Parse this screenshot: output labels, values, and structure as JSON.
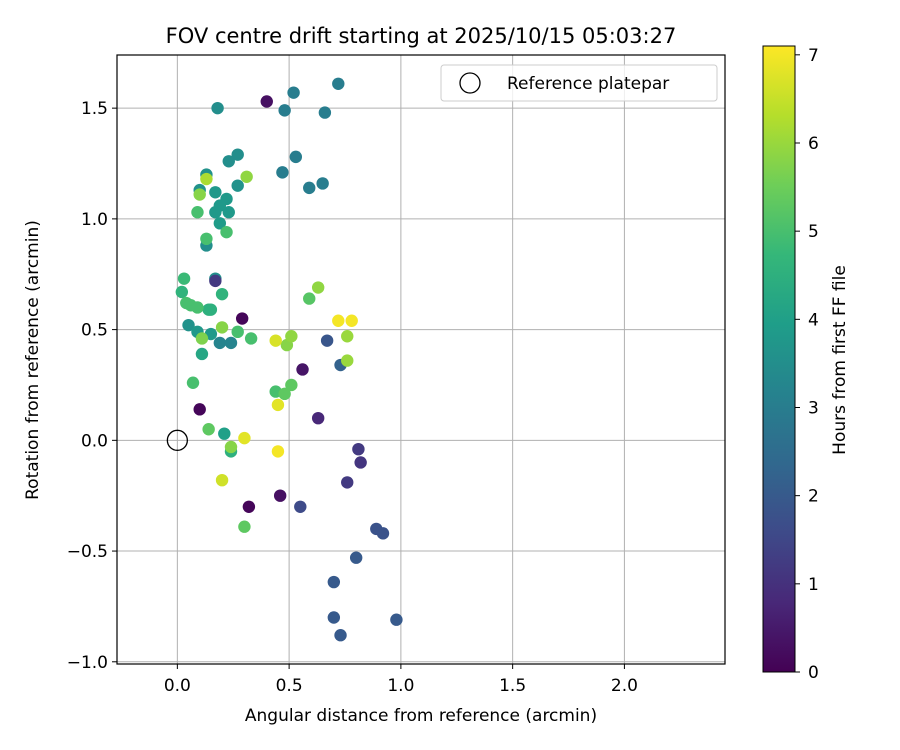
{
  "chart_data": {
    "type": "scatter",
    "title": "FOV centre drift starting at 2025/10/15 05:03:27",
    "xlabel": "Angular distance from reference (arcmin)",
    "ylabel": "Rotation from reference (arcmin)",
    "xlim": [
      -0.27,
      2.45
    ],
    "ylim": [
      -1.01,
      1.74
    ],
    "xticks": [
      0.0,
      0.5,
      1.0,
      1.5,
      2.0
    ],
    "xtick_labels": [
      "0.0",
      "0.5",
      "1.0",
      "1.5",
      "2.0"
    ],
    "yticks": [
      -1.0,
      -0.5,
      0.0,
      0.5,
      1.0,
      1.5
    ],
    "ytick_labels": [
      "−1.0",
      "−0.5",
      "0.0",
      "0.5",
      "1.0",
      "1.5"
    ],
    "grid": true,
    "legend": {
      "location": "top-right",
      "entries": [
        {
          "label": "Reference platepar",
          "marker": "open-circle"
        }
      ]
    },
    "reference_point": {
      "x": 0.0,
      "y": 0.0
    },
    "colorbar": {
      "label": "Hours from first FF file",
      "colormap": "viridis",
      "range": [
        0,
        7.1
      ],
      "ticks": [
        0,
        1,
        2,
        3,
        4,
        5,
        6,
        7
      ],
      "tick_labels": [
        "0",
        "1",
        "2",
        "3",
        "4",
        "5",
        "6",
        "7"
      ]
    },
    "colormap_stops": [
      "#440154",
      "#482878",
      "#3e4a89",
      "#31688e",
      "#26828e",
      "#1f9e89",
      "#35b779",
      "#6ece58",
      "#b5de2b",
      "#fde725"
    ],
    "points": [
      {
        "x": 0.1,
        "y": 0.14,
        "c": 0.1
      },
      {
        "x": 0.29,
        "y": 0.55,
        "c": 0.1
      },
      {
        "x": 0.32,
        "y": -0.3,
        "c": 0.1
      },
      {
        "x": 0.4,
        "y": 1.53,
        "c": 0.3
      },
      {
        "x": 0.46,
        "y": -0.25,
        "c": 0.3
      },
      {
        "x": 0.56,
        "y": 0.32,
        "c": 0.4
      },
      {
        "x": 0.63,
        "y": 0.1,
        "c": 0.8
      },
      {
        "x": 0.55,
        "y": -0.3,
        "c": 1.6
      },
      {
        "x": 0.76,
        "y": -0.19,
        "c": 1.2
      },
      {
        "x": 0.81,
        "y": -0.04,
        "c": 1.2
      },
      {
        "x": 0.82,
        "y": -0.1,
        "c": 1.1
      },
      {
        "x": 0.89,
        "y": -0.4,
        "c": 1.8
      },
      {
        "x": 0.92,
        "y": -0.42,
        "c": 1.8
      },
      {
        "x": 0.8,
        "y": -0.53,
        "c": 2.0
      },
      {
        "x": 0.7,
        "y": -0.64,
        "c": 2.0
      },
      {
        "x": 0.7,
        "y": -0.8,
        "c": 2.0
      },
      {
        "x": 0.73,
        "y": -0.88,
        "c": 2.0
      },
      {
        "x": 0.98,
        "y": -0.81,
        "c": 2.0
      },
      {
        "x": 0.67,
        "y": 0.45,
        "c": 1.9
      },
      {
        "x": 0.73,
        "y": 0.34,
        "c": 2.2
      },
      {
        "x": 0.72,
        "y": 1.61,
        "c": 3.0
      },
      {
        "x": 0.52,
        "y": 1.57,
        "c": 3.0
      },
      {
        "x": 0.48,
        "y": 1.49,
        "c": 3.0
      },
      {
        "x": 0.66,
        "y": 1.48,
        "c": 3.0
      },
      {
        "x": 0.53,
        "y": 1.28,
        "c": 3.0
      },
      {
        "x": 0.47,
        "y": 1.21,
        "c": 3.0
      },
      {
        "x": 0.59,
        "y": 1.14,
        "c": 3.0
      },
      {
        "x": 0.65,
        "y": 1.16,
        "c": 3.0
      },
      {
        "x": 0.18,
        "y": 1.5,
        "c": 3.5
      },
      {
        "x": 0.27,
        "y": 1.29,
        "c": 3.5
      },
      {
        "x": 0.23,
        "y": 1.26,
        "c": 3.5
      },
      {
        "x": 0.13,
        "y": 1.2,
        "c": 3.6
      },
      {
        "x": 0.1,
        "y": 1.13,
        "c": 3.6
      },
      {
        "x": 0.17,
        "y": 1.12,
        "c": 3.8
      },
      {
        "x": 0.22,
        "y": 1.09,
        "c": 3.8
      },
      {
        "x": 0.19,
        "y": 1.06,
        "c": 3.8
      },
      {
        "x": 0.17,
        "y": 1.03,
        "c": 3.8
      },
      {
        "x": 0.23,
        "y": 1.03,
        "c": 3.8
      },
      {
        "x": 0.19,
        "y": 0.98,
        "c": 3.9
      },
      {
        "x": 0.13,
        "y": 0.88,
        "c": 3.5
      },
      {
        "x": 0.27,
        "y": 1.15,
        "c": 3.6
      },
      {
        "x": 0.17,
        "y": 0.73,
        "c": 3.5
      },
      {
        "x": 0.17,
        "y": 0.72,
        "c": 1.2
      },
      {
        "x": 0.2,
        "y": 0.66,
        "c": 4.6
      },
      {
        "x": 0.14,
        "y": 0.59,
        "c": 4.5
      },
      {
        "x": 0.15,
        "y": 0.59,
        "c": 4.5
      },
      {
        "x": 0.05,
        "y": 0.52,
        "c": 3.6
      },
      {
        "x": 0.09,
        "y": 0.49,
        "c": 3.8
      },
      {
        "x": 0.15,
        "y": 0.48,
        "c": 3.8
      },
      {
        "x": 0.19,
        "y": 0.44,
        "c": 3.2
      },
      {
        "x": 0.24,
        "y": 0.44,
        "c": 3.2
      },
      {
        "x": 0.11,
        "y": 0.39,
        "c": 4.2
      },
      {
        "x": 0.21,
        "y": 0.03,
        "c": 4.0
      },
      {
        "x": 0.24,
        "y": -0.05,
        "c": 4.5
      },
      {
        "x": 0.02,
        "y": 0.67,
        "c": 4.6
      },
      {
        "x": 0.03,
        "y": 0.73,
        "c": 4.8
      },
      {
        "x": 0.04,
        "y": 0.62,
        "c": 5.0
      },
      {
        "x": 0.06,
        "y": 0.61,
        "c": 5.0
      },
      {
        "x": 0.09,
        "y": 0.6,
        "c": 5.0
      },
      {
        "x": 0.09,
        "y": 1.03,
        "c": 5.0
      },
      {
        "x": 0.22,
        "y": 0.94,
        "c": 5.0
      },
      {
        "x": 0.13,
        "y": 0.91,
        "c": 5.0
      },
      {
        "x": 0.27,
        "y": 0.49,
        "c": 5.0
      },
      {
        "x": 0.33,
        "y": 0.46,
        "c": 5.0
      },
      {
        "x": 0.07,
        "y": 0.26,
        "c": 5.0
      },
      {
        "x": 0.14,
        "y": 0.05,
        "c": 5.3
      },
      {
        "x": 0.3,
        "y": -0.39,
        "c": 5.3
      },
      {
        "x": 0.44,
        "y": 0.22,
        "c": 5.0
      },
      {
        "x": 0.48,
        "y": 0.21,
        "c": 5.3
      },
      {
        "x": 0.51,
        "y": 0.25,
        "c": 5.3
      },
      {
        "x": 0.59,
        "y": 0.64,
        "c": 5.2
      },
      {
        "x": 0.24,
        "y": -0.03,
        "c": 5.8
      },
      {
        "x": 0.2,
        "y": 0.51,
        "c": 5.8
      },
      {
        "x": 0.1,
        "y": 1.11,
        "c": 5.8
      },
      {
        "x": 0.31,
        "y": 1.19,
        "c": 5.9
      },
      {
        "x": 0.13,
        "y": 1.18,
        "c": 6.2
      },
      {
        "x": 0.11,
        "y": 0.46,
        "c": 5.7
      },
      {
        "x": 0.49,
        "y": 0.43,
        "c": 5.8
      },
      {
        "x": 0.51,
        "y": 0.47,
        "c": 5.9
      },
      {
        "x": 0.63,
        "y": 0.69,
        "c": 5.9
      },
      {
        "x": 0.76,
        "y": 0.47,
        "c": 6.0
      },
      {
        "x": 0.76,
        "y": 0.36,
        "c": 6.0
      },
      {
        "x": 0.2,
        "y": -0.18,
        "c": 6.6
      },
      {
        "x": 0.44,
        "y": 0.45,
        "c": 6.7
      },
      {
        "x": 0.45,
        "y": 0.16,
        "c": 6.8
      },
      {
        "x": 0.3,
        "y": 0.01,
        "c": 6.8
      },
      {
        "x": 0.45,
        "y": -0.05,
        "c": 7.0
      },
      {
        "x": 0.72,
        "y": 0.54,
        "c": 7.0
      },
      {
        "x": 0.78,
        "y": 0.54,
        "c": 7.0
      }
    ]
  }
}
